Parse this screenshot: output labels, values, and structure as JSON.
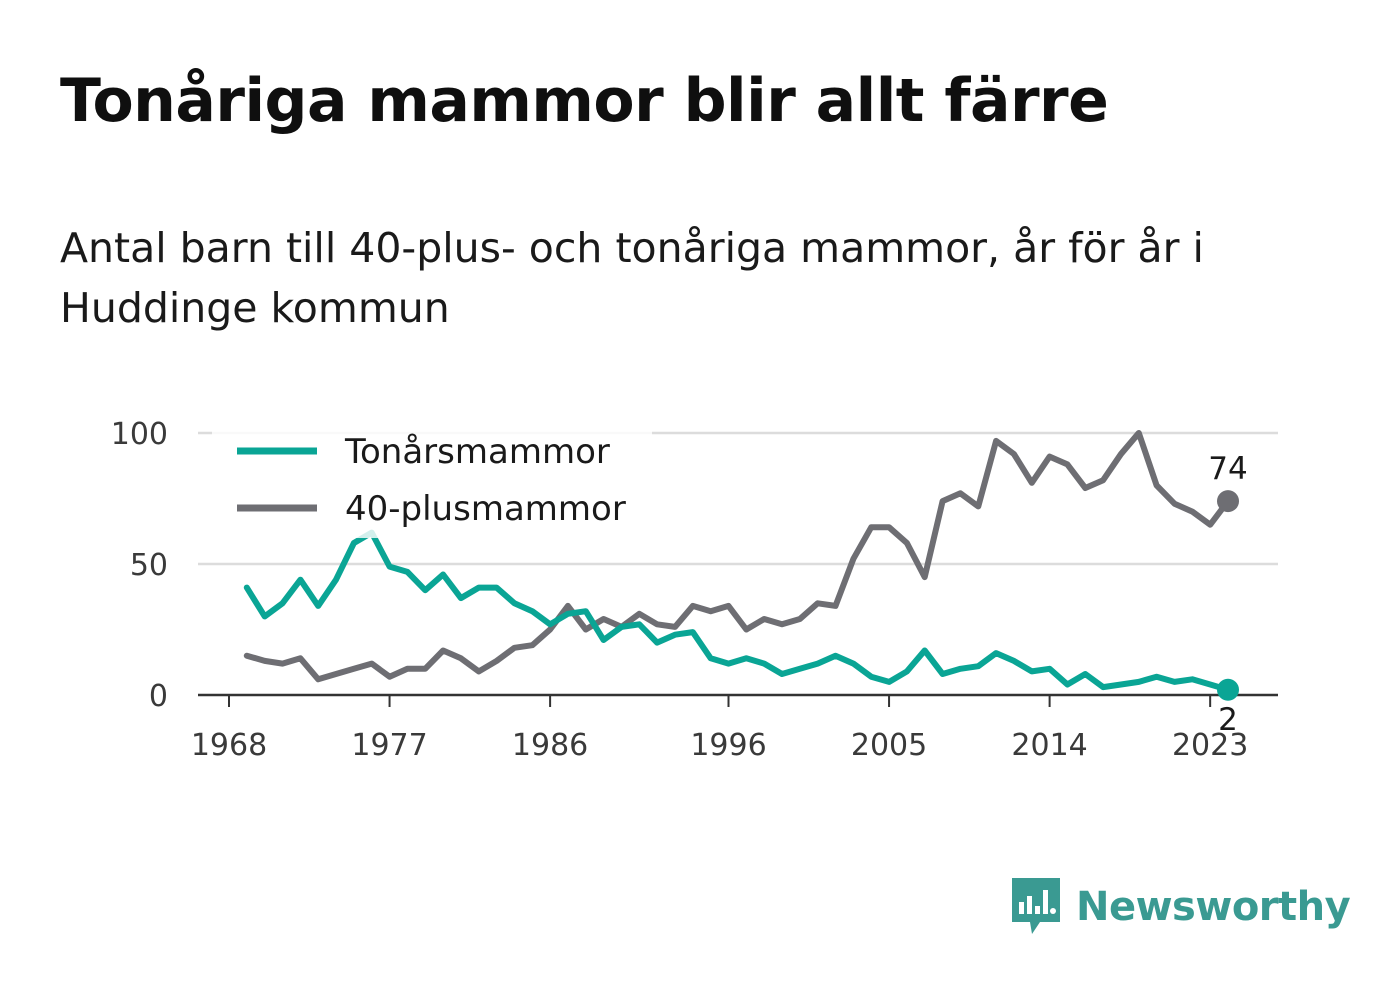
{
  "header": {
    "title": "Tonåriga mammor blir allt färre",
    "subtitle": "Antal barn till 40-plus- och tonåriga mammor, år för år i Huddinge kommun"
  },
  "brand": {
    "name": "Newsworthy",
    "icon": "newsworthy-logo-icon",
    "color": "#3a9a92"
  },
  "chart_data": {
    "type": "line",
    "title": "Tonåriga mammor blir allt färre",
    "subtitle": "Antal barn till 40-plus- och tonåriga mammor, år för år i Huddinge kommun",
    "xlabel": "",
    "ylabel": "",
    "ylim": [
      0,
      100
    ],
    "xlim": [
      1968,
      2025
    ],
    "x_ticks": [
      1968,
      1977,
      1986,
      1996,
      2005,
      2014,
      2023
    ],
    "x_tick_labels": [
      "1968",
      "1977",
      "1986",
      "1996",
      "2005",
      "2014",
      "2023"
    ],
    "y_ticks": [
      0,
      50,
      100
    ],
    "y_tick_labels": [
      "0",
      "50",
      "100"
    ],
    "grid": true,
    "legend": "top-left",
    "x": [
      1969,
      1970,
      1971,
      1972,
      1973,
      1974,
      1975,
      1976,
      1977,
      1978,
      1979,
      1980,
      1981,
      1982,
      1983,
      1984,
      1985,
      1986,
      1987,
      1988,
      1989,
      1990,
      1991,
      1992,
      1993,
      1994,
      1995,
      1996,
      1997,
      1998,
      1999,
      2000,
      2001,
      2002,
      2003,
      2004,
      2005,
      2006,
      2007,
      2008,
      2009,
      2010,
      2011,
      2012,
      2013,
      2014,
      2015,
      2016,
      2017,
      2018,
      2019,
      2020,
      2021,
      2022,
      2023,
      2024
    ],
    "series": [
      {
        "name": "Tonårsmammor",
        "color": "#0aa595",
        "values": [
          41,
          30,
          35,
          44,
          34,
          44,
          58,
          62,
          49,
          47,
          40,
          46,
          37,
          41,
          41,
          35,
          32,
          27,
          31,
          32,
          21,
          26,
          27,
          20,
          23,
          24,
          14,
          12,
          14,
          12,
          8,
          10,
          12,
          15,
          12,
          7,
          5,
          9,
          17,
          8,
          10,
          11,
          16,
          13,
          9,
          10,
          4,
          8,
          3,
          4,
          5,
          7,
          5,
          6,
          4,
          2
        ],
        "end_label": "2"
      },
      {
        "name": "40-plusmammor",
        "color": "#6e6e73",
        "values": [
          15,
          13,
          12,
          14,
          6,
          8,
          10,
          12,
          7,
          10,
          10,
          17,
          14,
          9,
          13,
          18,
          19,
          25,
          34,
          25,
          29,
          26,
          31,
          27,
          26,
          34,
          32,
          34,
          25,
          29,
          27,
          29,
          35,
          34,
          52,
          64,
          64,
          58,
          45,
          74,
          77,
          72,
          97,
          92,
          81,
          91,
          88,
          79,
          82,
          92,
          100,
          80,
          73,
          70,
          65,
          74
        ],
        "end_label": "74"
      }
    ]
  }
}
